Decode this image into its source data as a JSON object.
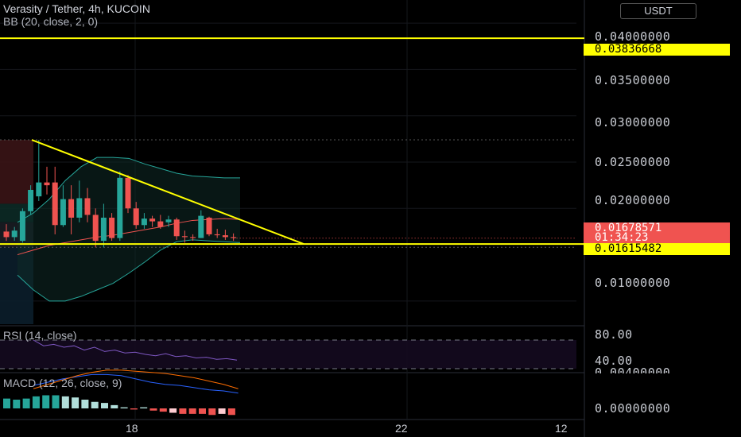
{
  "header": {
    "title": "Verasity / Tether, 4h, KUCOIN",
    "bb_legend": "BB (20, close, 2, 0)",
    "currency": "USDT"
  },
  "price_axis": {
    "labels": [
      "0.04000000",
      "0.03500000",
      "0.03000000",
      "0.02500000",
      "0.02000000",
      "0.01000000"
    ],
    "tags": {
      "upper_line": "0.03836668",
      "last_price": "0.01678571",
      "countdown": "01:34:23",
      "lower_line": "0.01615482"
    }
  },
  "rsi": {
    "legend": "RSI (14, close)",
    "levels": [
      "80.00",
      "40.00"
    ]
  },
  "macd": {
    "legend": "MACD (12, 26, close, 9)",
    "axis_top": "0.00400000",
    "axis_zero": "0.00000000"
  },
  "time_axis": [
    "18",
    "22",
    "12"
  ],
  "colors": {
    "background": "#000000",
    "up": "#26a69a",
    "down": "#ef5350",
    "trendline": "#ffff00",
    "bb_band": "#26a69a",
    "bb_basis": "#f05350",
    "rsi": "#7e57c2",
    "macd": "#2962ff",
    "signal": "#ff6d00"
  },
  "chart_data": {
    "type": "candlestick",
    "symbol": "Verasity / Tether",
    "interval": "4h",
    "exchange": "KUCOIN",
    "y_range": [
      0.0075,
      0.0425
    ],
    "candles": [
      {
        "o": 0.0175,
        "h": 0.0183,
        "l": 0.0165,
        "c": 0.0169
      },
      {
        "o": 0.0169,
        "h": 0.018,
        "l": 0.0165,
        "c": 0.0176
      },
      {
        "o": 0.0165,
        "h": 0.02,
        "l": 0.0163,
        "c": 0.0197
      },
      {
        "o": 0.0197,
        "h": 0.0225,
        "l": 0.0193,
        "c": 0.022
      },
      {
        "o": 0.0213,
        "h": 0.0274,
        "l": 0.0208,
        "c": 0.0228
      },
      {
        "o": 0.0228,
        "h": 0.0245,
        "l": 0.0215,
        "c": 0.0225
      },
      {
        "o": 0.0228,
        "h": 0.0245,
        "l": 0.0172,
        "c": 0.0182
      },
      {
        "o": 0.0182,
        "h": 0.0225,
        "l": 0.018,
        "c": 0.021
      },
      {
        "o": 0.021,
        "h": 0.0225,
        "l": 0.0172,
        "c": 0.019
      },
      {
        "o": 0.019,
        "h": 0.023,
        "l": 0.0185,
        "c": 0.0211
      },
      {
        "o": 0.0211,
        "h": 0.0222,
        "l": 0.0185,
        "c": 0.0193
      },
      {
        "o": 0.0193,
        "h": 0.02,
        "l": 0.0158,
        "c": 0.0165
      },
      {
        "o": 0.0165,
        "h": 0.0205,
        "l": 0.0158,
        "c": 0.019
      },
      {
        "o": 0.019,
        "h": 0.0195,
        "l": 0.0165,
        "c": 0.0168
      },
      {
        "o": 0.0168,
        "h": 0.024,
        "l": 0.0165,
        "c": 0.0233
      },
      {
        "o": 0.0233,
        "h": 0.0236,
        "l": 0.0195,
        "c": 0.02
      },
      {
        "o": 0.02,
        "h": 0.0207,
        "l": 0.0178,
        "c": 0.0182
      },
      {
        "o": 0.0182,
        "h": 0.0195,
        "l": 0.0178,
        "c": 0.0189
      },
      {
        "o": 0.0189,
        "h": 0.0192,
        "l": 0.018,
        "c": 0.0186
      },
      {
        "o": 0.0186,
        "h": 0.0193,
        "l": 0.0178,
        "c": 0.018
      },
      {
        "o": 0.0185,
        "h": 0.0192,
        "l": 0.018,
        "c": 0.0188
      },
      {
        "o": 0.0188,
        "h": 0.019,
        "l": 0.0166,
        "c": 0.017
      },
      {
        "o": 0.017,
        "h": 0.0176,
        "l": 0.0163,
        "c": 0.0169
      },
      {
        "o": 0.0169,
        "h": 0.0172,
        "l": 0.0165,
        "c": 0.0168
      },
      {
        "o": 0.0168,
        "h": 0.0198,
        "l": 0.0168,
        "c": 0.0192
      },
      {
        "o": 0.019,
        "h": 0.0191,
        "l": 0.017,
        "c": 0.0172
      },
      {
        "o": 0.0172,
        "h": 0.0178,
        "l": 0.0168,
        "c": 0.0171
      },
      {
        "o": 0.0171,
        "h": 0.0177,
        "l": 0.0166,
        "c": 0.0169
      },
      {
        "o": 0.0169,
        "h": 0.0173,
        "l": 0.0165,
        "c": 0.0168
      }
    ],
    "bb_upper": [
      0.0185,
      0.0195,
      0.021,
      0.023,
      0.0245,
      0.0255,
      0.0255,
      0.0254,
      0.0248,
      0.0243,
      0.0238,
      0.0235,
      0.0234,
      0.0233,
      0.0233
    ],
    "bb_basis": [
      0.015,
      0.0155,
      0.016,
      0.0163,
      0.0166,
      0.0169,
      0.0171,
      0.0174,
      0.0177,
      0.018,
      0.0184,
      0.0187,
      0.0188,
      0.0189,
      0.0188
    ],
    "bb_lower": [
      0.0128,
      0.0112,
      0.01,
      0.01,
      0.0105,
      0.0112,
      0.0119,
      0.013,
      0.0142,
      0.0155,
      0.0164,
      0.0166,
      0.0165,
      0.0164,
      0.0163
    ],
    "horizontal_lines": [
      0.03836668,
      0.01615482
    ],
    "trendline": {
      "from": 0.0274,
      "to": 0.01615482
    },
    "dotted_lines": [
      0.0274,
      0.0158
    ],
    "last_price": 0.01678571,
    "rsi": [
      80,
      72,
      74,
      70,
      72,
      66,
      70,
      64,
      66,
      62,
      63,
      60,
      58,
      61,
      57,
      58,
      55,
      56,
      53,
      54,
      52
    ],
    "rsi_levels": [
      80,
      40
    ],
    "macd_hist": [
      0.0009,
      0.0008,
      0.0009,
      0.0011,
      0.0012,
      0.0012,
      0.0011,
      0.001,
      0.0008,
      0.0006,
      0.0005,
      0.0003,
      0.0001,
      -0.0001,
      0.0001,
      -0.0002,
      -0.0003,
      -0.0004,
      -0.0005,
      -0.0005,
      -0.0005,
      -0.0006,
      -0.0005,
      -0.0006
    ],
    "macd_line": [
      0.0021,
      0.0024,
      0.0027,
      0.0029,
      0.0031,
      0.0031,
      0.003,
      0.0027,
      0.0024,
      0.0022,
      0.0021,
      0.0019,
      0.0017,
      0.0016,
      0.0014
    ],
    "signal_line": [
      0.0018,
      0.0022,
      0.0026,
      0.003,
      0.0033,
      0.0035,
      0.0035,
      0.0034,
      0.0033,
      0.0032,
      0.003,
      0.0028,
      0.0025,
      0.0022,
      0.0018
    ]
  }
}
